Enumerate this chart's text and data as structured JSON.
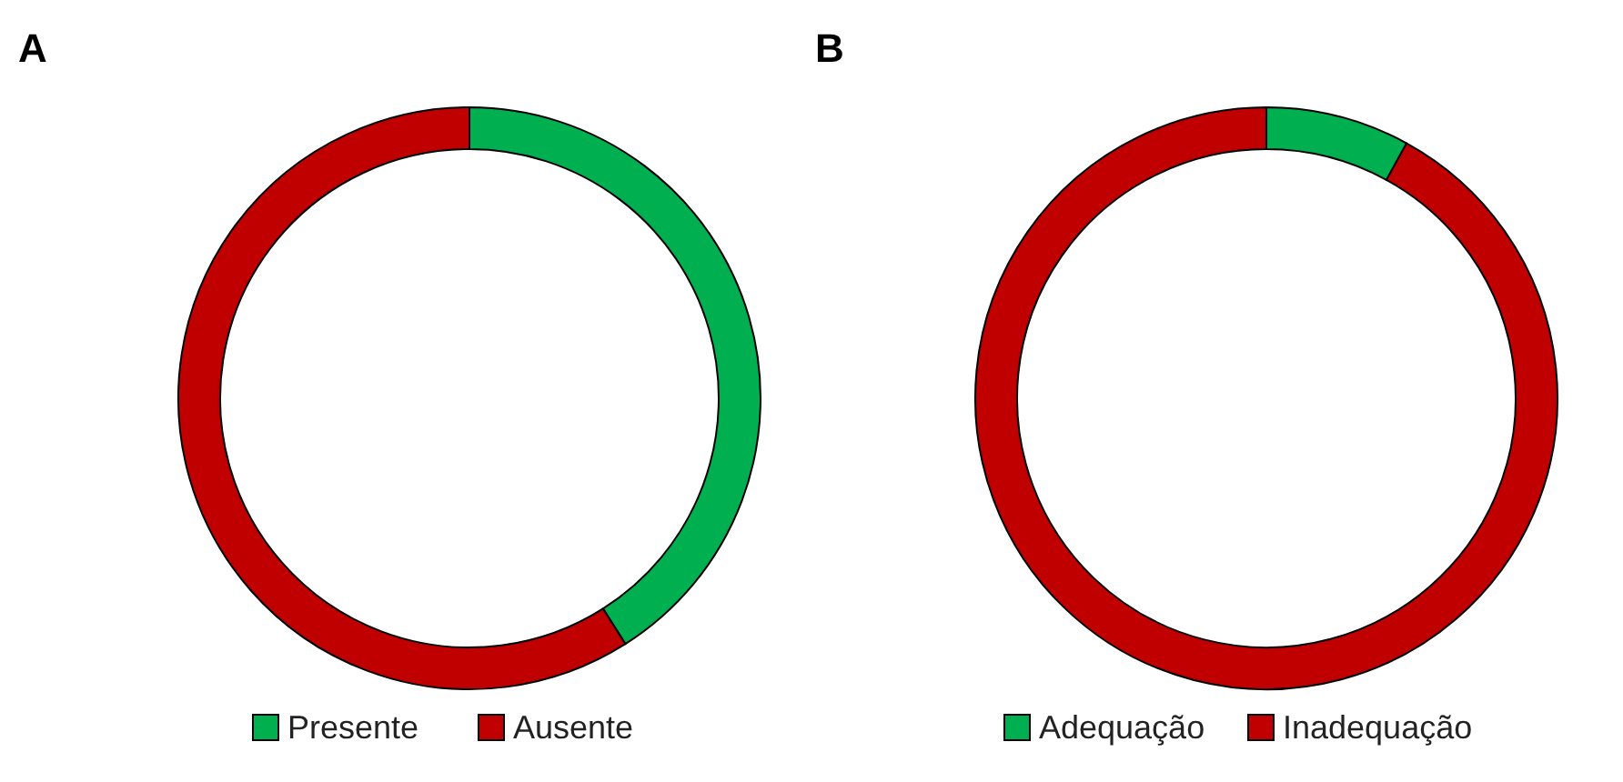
{
  "chart_data": [
    {
      "type": "donut",
      "title": "A",
      "categories": [
        "Presente",
        "Ausente"
      ],
      "values": [
        41,
        59
      ],
      "colors": [
        "#00b050",
        "#c00000"
      ],
      "legend": "bottom"
    },
    {
      "type": "donut",
      "title": "B",
      "categories": [
        "Adequação",
        "Inadequação"
      ],
      "values": [
        8,
        92
      ],
      "colors": [
        "#00b050",
        "#c00000"
      ],
      "legend": "bottom"
    }
  ]
}
